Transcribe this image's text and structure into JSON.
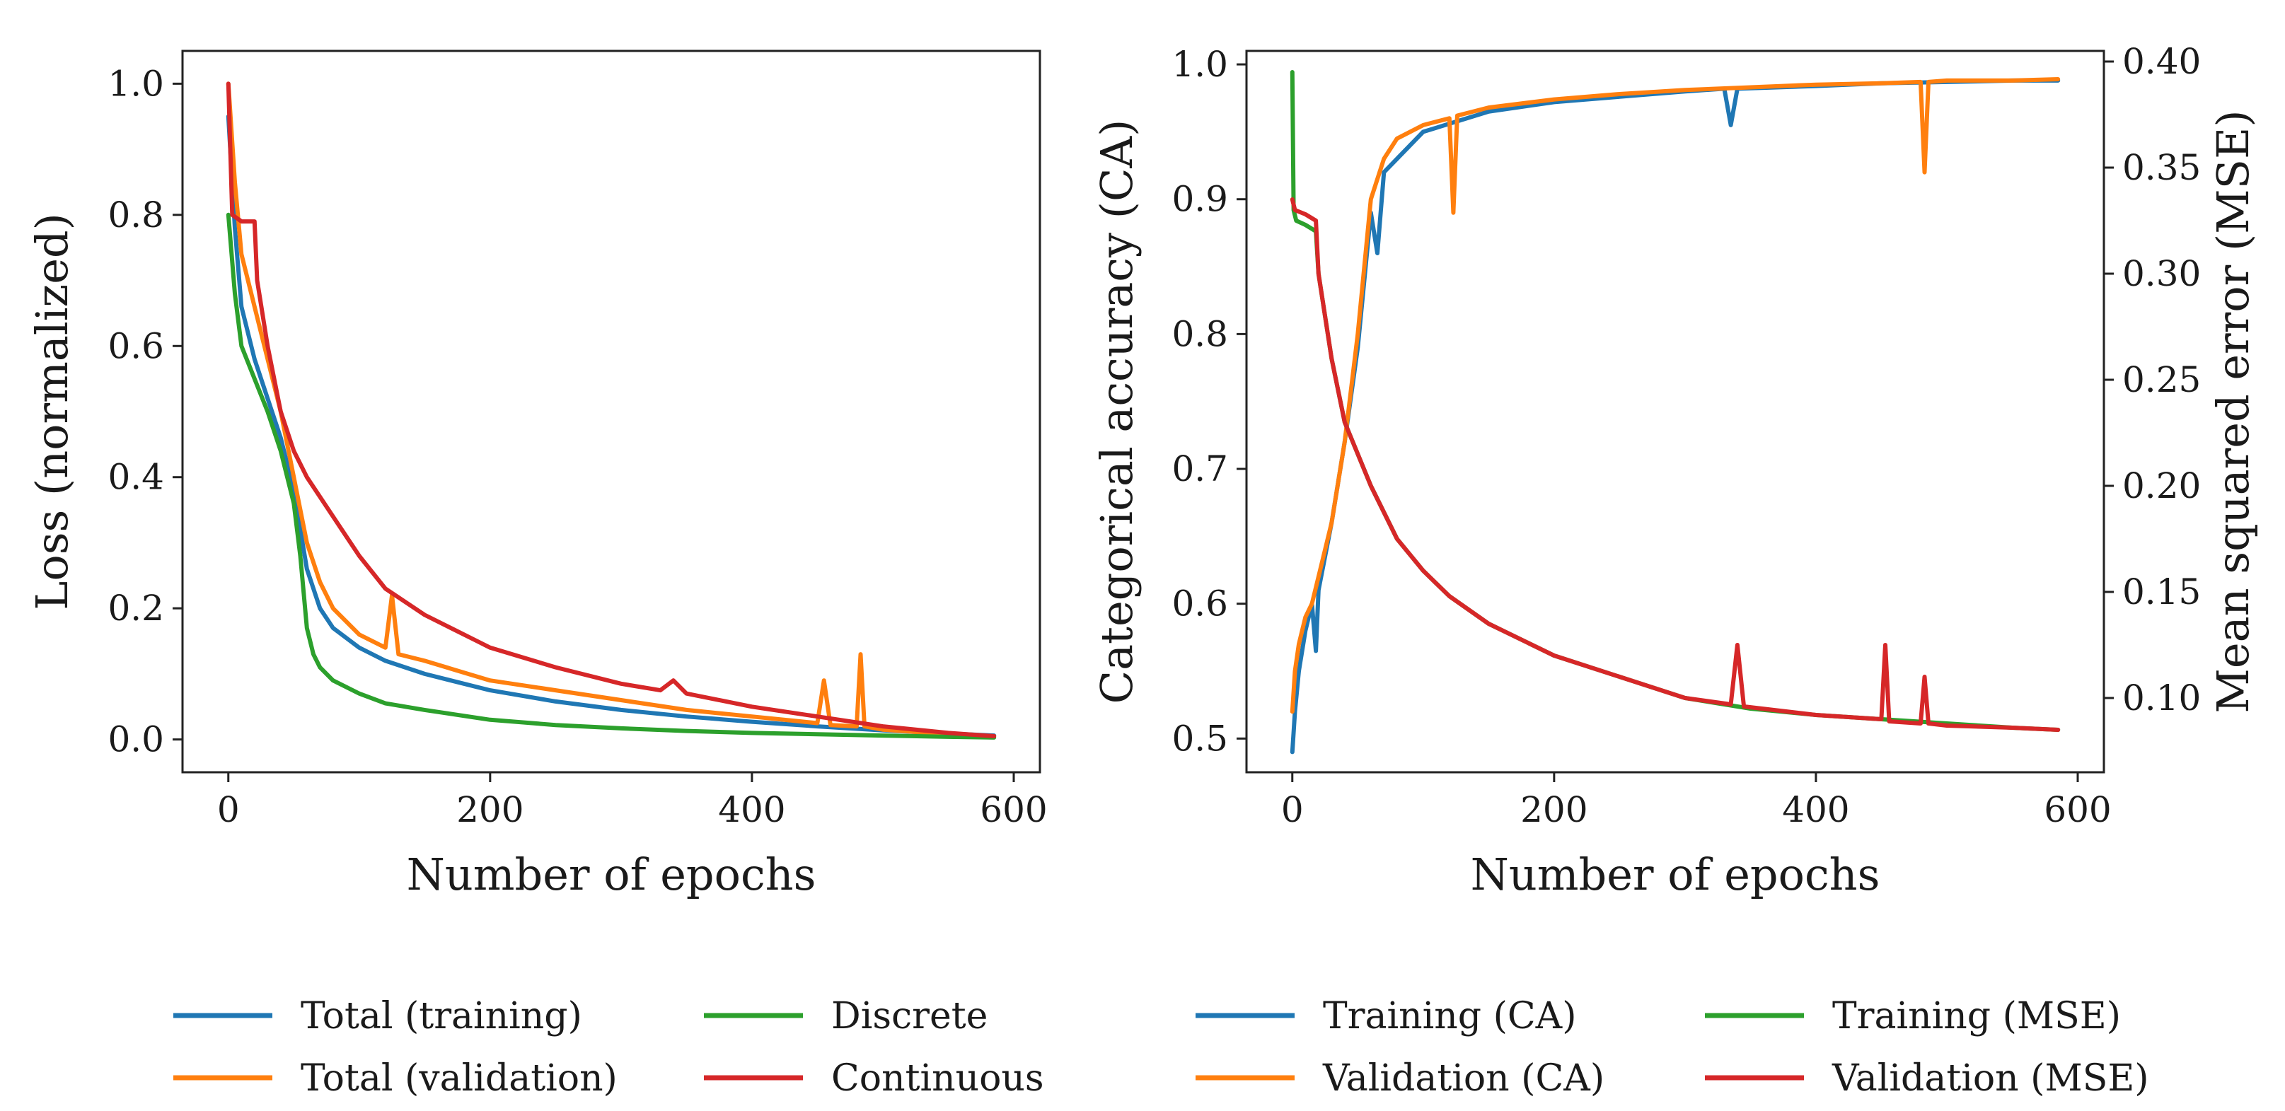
{
  "colors": {
    "blue": "#1f77b4",
    "orange": "#ff7f0e",
    "green": "#2ca02c",
    "red": "#d62728"
  },
  "chart_data": [
    {
      "type": "line",
      "xlabel": "Number of epochs",
      "ylabel": "Loss (normalized)",
      "xlim": [
        -35,
        620
      ],
      "ylim": [
        -0.05,
        1.05
      ],
      "xticks": [
        "0",
        "200",
        "400",
        "600"
      ],
      "xtick_values": [
        0,
        200,
        400,
        600
      ],
      "yticks": [
        "0.0",
        "0.2",
        "0.4",
        "0.6",
        "0.8",
        "1.0"
      ],
      "ytick_values": [
        0.0,
        0.2,
        0.4,
        0.6,
        0.8,
        1.0
      ],
      "legend": {
        "placement": "below",
        "entries": [
          {
            "label": "Total (training)",
            "color": "blue"
          },
          {
            "label": "Total (validation)",
            "color": "orange"
          },
          {
            "label": "Discrete",
            "color": "green"
          },
          {
            "label": "Continuous",
            "color": "red"
          }
        ]
      },
      "series": [
        {
          "name": "Total (training)",
          "color": "blue",
          "x": [
            0,
            5,
            10,
            20,
            30,
            40,
            50,
            60,
            70,
            80,
            100,
            120,
            150,
            200,
            250,
            300,
            350,
            400,
            450,
            500,
            550,
            585
          ],
          "y": [
            0.95,
            0.78,
            0.66,
            0.58,
            0.52,
            0.46,
            0.38,
            0.26,
            0.2,
            0.17,
            0.14,
            0.12,
            0.1,
            0.075,
            0.058,
            0.045,
            0.035,
            0.027,
            0.02,
            0.014,
            0.009,
            0.006
          ]
        },
        {
          "name": "Total (validation)",
          "color": "orange",
          "x": [
            0,
            5,
            10,
            20,
            30,
            40,
            50,
            60,
            70,
            80,
            100,
            120,
            125,
            130,
            150,
            200,
            250,
            300,
            350,
            400,
            450,
            455,
            460,
            480,
            483,
            486,
            500,
            550,
            585
          ],
          "y": [
            1.0,
            0.85,
            0.74,
            0.66,
            0.58,
            0.5,
            0.4,
            0.3,
            0.24,
            0.2,
            0.16,
            0.14,
            0.22,
            0.13,
            0.12,
            0.09,
            0.075,
            0.06,
            0.045,
            0.035,
            0.025,
            0.09,
            0.022,
            0.02,
            0.13,
            0.02,
            0.015,
            0.008,
            0.005
          ]
        },
        {
          "name": "Discrete",
          "color": "green",
          "x": [
            0,
            5,
            10,
            20,
            30,
            40,
            50,
            55,
            60,
            65,
            70,
            80,
            100,
            120,
            150,
            200,
            250,
            300,
            350,
            400,
            450,
            500,
            550,
            585
          ],
          "y": [
            0.8,
            0.68,
            0.6,
            0.55,
            0.5,
            0.44,
            0.36,
            0.28,
            0.17,
            0.13,
            0.11,
            0.09,
            0.07,
            0.055,
            0.045,
            0.03,
            0.022,
            0.017,
            0.013,
            0.01,
            0.008,
            0.006,
            0.004,
            0.003
          ]
        },
        {
          "name": "Continuous",
          "color": "red",
          "x": [
            0,
            3,
            10,
            20,
            22,
            30,
            40,
            50,
            60,
            80,
            100,
            120,
            150,
            190,
            200,
            250,
            300,
            330,
            340,
            350,
            400,
            450,
            500,
            550,
            585
          ],
          "y": [
            1.0,
            0.8,
            0.79,
            0.79,
            0.7,
            0.6,
            0.5,
            0.44,
            0.4,
            0.34,
            0.28,
            0.23,
            0.19,
            0.15,
            0.14,
            0.11,
            0.085,
            0.075,
            0.09,
            0.07,
            0.05,
            0.035,
            0.02,
            0.01,
            0.005
          ]
        }
      ]
    },
    {
      "type": "line",
      "xlabel": "Number of epochs",
      "ylabel": "Categorical accuracy (CA)",
      "ylabel_right": "Mean squared error (MSE)",
      "xlim": [
        -35,
        620
      ],
      "ylim": [
        0.475,
        1.01
      ],
      "ylim_right": [
        0.065,
        0.405
      ],
      "xticks": [
        "0",
        "200",
        "400",
        "600"
      ],
      "xtick_values": [
        0,
        200,
        400,
        600
      ],
      "yticks": [
        "0.5",
        "0.6",
        "0.7",
        "0.8",
        "0.9",
        "1.0"
      ],
      "ytick_values": [
        0.5,
        0.6,
        0.7,
        0.8,
        0.9,
        1.0
      ],
      "yticks_right": [
        "0.10",
        "0.15",
        "0.20",
        "0.25",
        "0.30",
        "0.35",
        "0.40"
      ],
      "ytick_values_right": [
        0.1,
        0.15,
        0.2,
        0.25,
        0.3,
        0.35,
        0.4
      ],
      "legend": {
        "placement": "below",
        "entries": [
          {
            "label": "Training (CA)",
            "color": "blue"
          },
          {
            "label": "Validation (CA)",
            "color": "orange"
          },
          {
            "label": "Training (MSE)",
            "color": "green"
          },
          {
            "label": "Validation (MSE)",
            "color": "red"
          }
        ]
      },
      "series": [
        {
          "name": "Training (CA)",
          "color": "blue",
          "axis": "left",
          "x": [
            0,
            2,
            5,
            10,
            15,
            18,
            20,
            30,
            40,
            50,
            60,
            65,
            70,
            80,
            100,
            150,
            200,
            250,
            300,
            330,
            335,
            340,
            400,
            450,
            500,
            550,
            585
          ],
          "y": [
            0.49,
            0.52,
            0.55,
            0.58,
            0.6,
            0.565,
            0.61,
            0.66,
            0.72,
            0.79,
            0.89,
            0.86,
            0.92,
            0.93,
            0.95,
            0.965,
            0.972,
            0.976,
            0.98,
            0.982,
            0.955,
            0.982,
            0.984,
            0.986,
            0.987,
            0.988,
            0.988
          ]
        },
        {
          "name": "Validation (CA)",
          "color": "orange",
          "axis": "left",
          "x": [
            0,
            2,
            5,
            10,
            15,
            20,
            30,
            40,
            50,
            60,
            70,
            80,
            100,
            120,
            123,
            126,
            150,
            200,
            250,
            300,
            350,
            400,
            450,
            480,
            483,
            486,
            500,
            550,
            585
          ],
          "y": [
            0.52,
            0.55,
            0.57,
            0.59,
            0.6,
            0.62,
            0.66,
            0.72,
            0.8,
            0.9,
            0.93,
            0.945,
            0.955,
            0.96,
            0.89,
            0.962,
            0.968,
            0.974,
            0.978,
            0.981,
            0.983,
            0.985,
            0.986,
            0.987,
            0.92,
            0.987,
            0.988,
            0.988,
            0.989
          ]
        },
        {
          "name": "Training (MSE)",
          "color": "green",
          "axis": "right",
          "x": [
            0,
            1,
            3,
            10,
            18,
            20,
            30,
            40,
            50,
            60,
            80,
            100,
            120,
            150,
            200,
            250,
            300,
            350,
            400,
            450,
            500,
            550,
            585
          ],
          "y": [
            0.395,
            0.33,
            0.325,
            0.323,
            0.32,
            0.3,
            0.26,
            0.23,
            0.215,
            0.2,
            0.175,
            0.16,
            0.148,
            0.135,
            0.12,
            0.11,
            0.1,
            0.095,
            0.092,
            0.09,
            0.088,
            0.086,
            0.085
          ]
        },
        {
          "name": "Validation (MSE)",
          "color": "red",
          "axis": "right",
          "x": [
            0,
            2,
            10,
            18,
            20,
            30,
            40,
            50,
            60,
            80,
            100,
            120,
            150,
            200,
            250,
            300,
            335,
            340,
            345,
            400,
            450,
            453,
            456,
            480,
            483,
            486,
            500,
            550,
            585
          ],
          "y": [
            0.335,
            0.33,
            0.328,
            0.325,
            0.3,
            0.26,
            0.23,
            0.215,
            0.2,
            0.175,
            0.16,
            0.148,
            0.135,
            0.12,
            0.11,
            0.1,
            0.097,
            0.125,
            0.096,
            0.092,
            0.09,
            0.125,
            0.089,
            0.088,
            0.11,
            0.088,
            0.087,
            0.086,
            0.085
          ]
        }
      ]
    }
  ]
}
